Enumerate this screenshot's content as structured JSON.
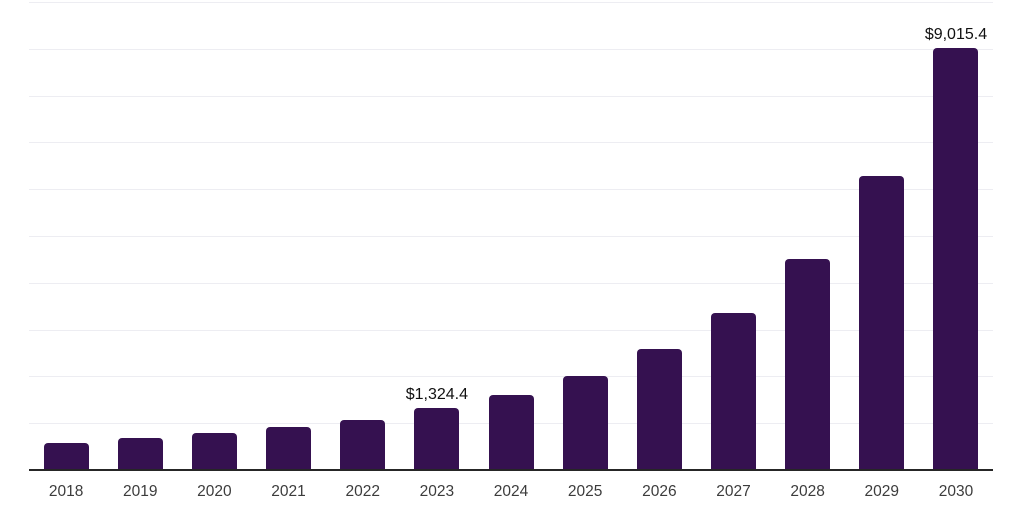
{
  "chart_data": {
    "type": "bar",
    "categories": [
      "2018",
      "2019",
      "2020",
      "2021",
      "2022",
      "2023",
      "2024",
      "2025",
      "2026",
      "2027",
      "2028",
      "2029",
      "2030"
    ],
    "values": [
      585,
      675,
      795,
      925,
      1070,
      1324.4,
      1600,
      2010,
      2580,
      3360,
      4515,
      6280,
      9015.4
    ],
    "bar_labels": [
      "",
      "",
      "",
      "",
      "",
      "$1,324.4",
      "",
      "",
      "",
      "",
      "",
      "",
      "$9,015.4"
    ],
    "labeled_points": [
      {
        "category": "2023",
        "label": "$1,324.4",
        "value": 1324.4
      },
      {
        "category": "2030",
        "label": "$9,015.4",
        "value": 9015.4
      }
    ],
    "xlabel": "",
    "ylabel": "",
    "ylim": [
      0,
      10000
    ],
    "gridline_step": 1000,
    "grid": "horizontal",
    "legend": "none",
    "y_axis_tick_labels": "hidden"
  },
  "colors": {
    "bar": "#351150",
    "gridline": "#EDEDF2",
    "axis_line": "#262626",
    "tick_label": "#3C3C3C",
    "data_label": "#111111",
    "background": "#FFFFFF"
  }
}
